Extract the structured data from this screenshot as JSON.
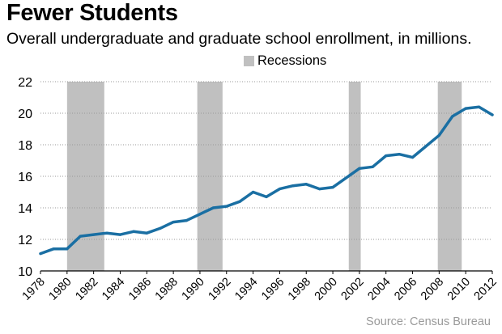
{
  "title": "Fewer Students",
  "subtitle": "Overall undergraduate and graduate school enrollment, in millions.",
  "legend": {
    "label": "Recessions"
  },
  "source": "Source: Census Bureau",
  "colors": {
    "line": "#1a6fa3",
    "recession": "#c0c0c0",
    "grid": "#999999"
  },
  "chart_data": {
    "type": "line",
    "title": "Fewer Students",
    "ylabel": "",
    "xlabel": "",
    "ylim": [
      10,
      22
    ],
    "xlim": [
      1978,
      2012
    ],
    "yticks": [
      10,
      12,
      14,
      16,
      18,
      20,
      22
    ],
    "xticks": [
      1978,
      1980,
      1982,
      1984,
      1986,
      1988,
      1990,
      1992,
      1994,
      1996,
      1998,
      2000,
      2002,
      2004,
      2006,
      2008,
      2010,
      2012
    ],
    "recessions": [
      [
        1980,
        1982.8
      ],
      [
        1989.8,
        1991.7
      ],
      [
        2001.2,
        2002.1
      ],
      [
        2007.9,
        2009.7
      ]
    ],
    "series": [
      {
        "x": [
          1978,
          1979,
          1980,
          1981,
          1982,
          1983,
          1984,
          1985,
          1986,
          1987,
          1988,
          1989,
          1990,
          1991,
          1992,
          1993,
          1994,
          1995,
          1996,
          1997,
          1998,
          1999,
          2000,
          2001,
          2002,
          2003,
          2004,
          2005,
          2006,
          2007,
          2008,
          2009,
          2010,
          2011,
          2012
        ],
        "values": [
          11.1,
          11.4,
          11.4,
          12.2,
          12.3,
          12.4,
          12.3,
          12.5,
          12.4,
          12.7,
          13.1,
          13.2,
          13.6,
          14.0,
          14.1,
          14.4,
          15.0,
          14.7,
          15.2,
          15.4,
          15.5,
          15.2,
          15.3,
          15.9,
          16.5,
          16.6,
          17.3,
          17.4,
          17.2,
          17.9,
          18.6,
          19.8,
          20.3,
          20.4,
          19.9
        ]
      }
    ]
  }
}
